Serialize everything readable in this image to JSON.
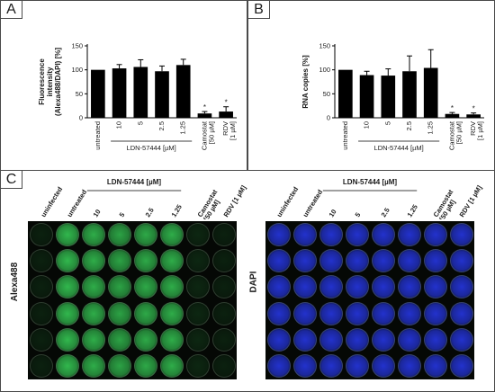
{
  "panels": {
    "a": "A",
    "b": "B",
    "c": "C"
  },
  "chart_data": [
    {
      "type": "bar",
      "ylabel": "Fluorescence\nintensity\n(Alexa488/DAPI) [%]",
      "ylim": [
        0,
        150
      ],
      "yticks": [
        0,
        50,
        100,
        150
      ],
      "categories": [
        "untreated",
        "10",
        "5",
        "2.5",
        "1.25",
        "Camostat\n[50 µM]",
        "RDV\n[1 µM]"
      ],
      "values": [
        100,
        103,
        106,
        97,
        110,
        9,
        13
      ],
      "errors": [
        0,
        8,
        15,
        11,
        12,
        4,
        10
      ],
      "significance": [
        "",
        "",
        "",
        "",
        "",
        "*",
        "*"
      ],
      "group_label": "LDN-57444 [µM]",
      "bar_color": "#000000"
    },
    {
      "type": "bar",
      "ylabel": "RNA copies [%]",
      "ylim": [
        0,
        150
      ],
      "yticks": [
        0,
        50,
        100,
        150
      ],
      "categories": [
        "untreated",
        "10",
        "5",
        "2.5",
        "1.25",
        "Camostat\n[50 µM]",
        "RDV\n[1 µM]"
      ],
      "values": [
        100,
        89,
        88,
        97,
        104,
        8,
        7
      ],
      "errors": [
        0,
        8,
        14,
        32,
        38,
        3,
        3
      ],
      "significance": [
        "",
        "",
        "",
        "",
        "",
        "*",
        "*"
      ],
      "group_label": "LDN-57444 [µM]",
      "bar_color": "#000000"
    }
  ],
  "plates": {
    "column_headers": [
      "uninfected",
      "untreated",
      "10",
      "5",
      "2.5",
      "1.25",
      "Camostat\n[50 µM]",
      "RDV [1 µM]"
    ],
    "group_label": "LDN-57444 [µM]",
    "left_label": "Alexa488",
    "right_label": "DAPI",
    "rows": 6,
    "left_column_brightness": [
      0.12,
      0.85,
      0.8,
      0.75,
      0.78,
      0.8,
      0.15,
      0.12
    ],
    "left_color": "#39d65a",
    "right_color": "#2a3cff"
  }
}
